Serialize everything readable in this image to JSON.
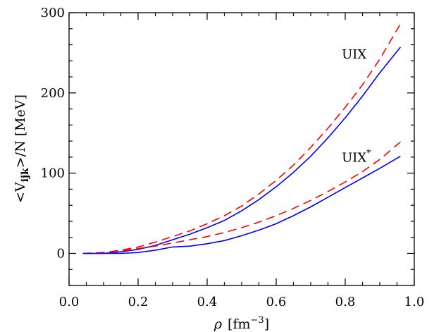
{
  "chart_data": {
    "type": "line",
    "xlabel": {
      "symbol": "ρ",
      "unit_open": "[fm",
      "unit_exp": "−3",
      "unit_close": "]"
    },
    "ylabel": {
      "pre": "<V",
      "sub": "ijk",
      "post": ">/N [MeV]"
    },
    "xlim": [
      0.0,
      1.0
    ],
    "ylim": [
      -40,
      300
    ],
    "x_ticks": [
      0.0,
      0.2,
      0.4,
      0.6,
      0.8,
      1.0
    ],
    "x_tick_labels": [
      "0.0",
      "0.2",
      "0.4",
      "0.6",
      "0.8",
      "1.0"
    ],
    "y_ticks": [
      0,
      100,
      200,
      300
    ],
    "y_tick_labels": [
      "0",
      "100",
      "200",
      "300"
    ],
    "grid": false,
    "annotations": [
      {
        "text": "UIX",
        "sup": "",
        "x": 0.79,
        "y": 243
      },
      {
        "text": "UIX",
        "sup": "*",
        "x": 0.79,
        "y": 114
      }
    ],
    "series": [
      {
        "style": "dashed",
        "color": "#ff0000",
        "x": [
          0.04,
          0.1,
          0.15,
          0.2,
          0.25,
          0.3,
          0.35,
          0.4,
          0.45,
          0.5,
          0.55,
          0.6,
          0.65,
          0.7,
          0.75,
          0.8,
          0.85,
          0.9,
          0.96
        ],
        "y": [
          0,
          1,
          4,
          8,
          14,
          21,
          28,
          37,
          47,
          59,
          74,
          91,
          110,
          132,
          156,
          182,
          210,
          242,
          286
        ]
      },
      {
        "style": "solid",
        "color": "#0000ff",
        "x": [
          0.04,
          0.1,
          0.15,
          0.2,
          0.25,
          0.3,
          0.35,
          0.4,
          0.45,
          0.5,
          0.55,
          0.6,
          0.65,
          0.7,
          0.75,
          0.8,
          0.85,
          0.9,
          0.96
        ],
        "y": [
          0,
          0,
          2,
          5,
          10,
          17,
          24,
          32,
          41,
          53,
          67,
          83,
          101,
          121,
          144,
          169,
          196,
          225,
          257
        ]
      },
      {
        "style": "dashed",
        "color": "#ff0000",
        "x": [
          0.04,
          0.1,
          0.15,
          0.2,
          0.25,
          0.3,
          0.35,
          0.4,
          0.45,
          0.5,
          0.55,
          0.6,
          0.65,
          0.7,
          0.75,
          0.8,
          0.85,
          0.9,
          0.96
        ],
        "y": [
          0,
          1,
          3,
          6,
          9,
          13,
          17,
          21,
          26,
          32,
          39,
          47,
          56,
          66,
          77,
          89,
          102,
          117,
          139
        ]
      },
      {
        "style": "solid",
        "color": "#0000ff",
        "x": [
          0.04,
          0.1,
          0.15,
          0.2,
          0.25,
          0.3,
          0.35,
          0.4,
          0.45,
          0.5,
          0.55,
          0.6,
          0.65,
          0.7,
          0.75,
          0.8,
          0.85,
          0.9,
          0.96
        ],
        "y": [
          0,
          0,
          0,
          1,
          4,
          8,
          9,
          12,
          16,
          22,
          29,
          37,
          47,
          58,
          70,
          82,
          94,
          106,
          121
        ]
      }
    ]
  }
}
